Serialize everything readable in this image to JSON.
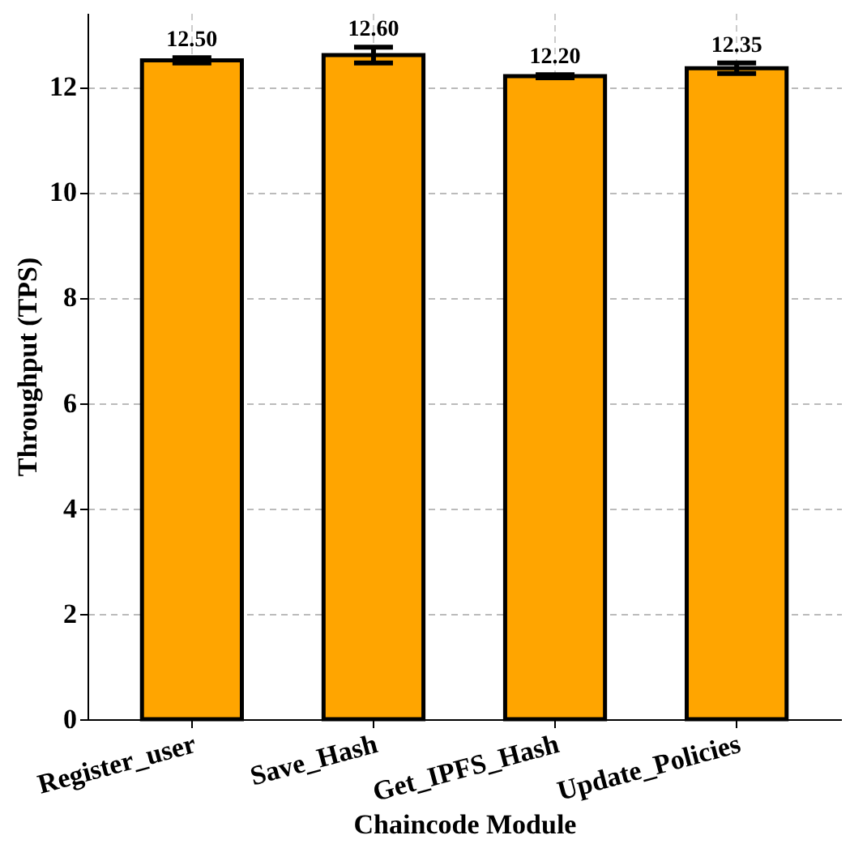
{
  "chart_data": {
    "type": "bar",
    "xlabel": "Chaincode Module",
    "ylabel": "Throughput (TPS)",
    "categories": [
      "Register_user",
      "Save_Hash",
      "Get_IPFS_Hash",
      "Update_Policies"
    ],
    "values": [
      12.5,
      12.6,
      12.2,
      12.35
    ],
    "errors": [
      0.05,
      0.15,
      0.03,
      0.1
    ],
    "value_labels": [
      "12.50",
      "12.60",
      "12.20",
      "12.35"
    ],
    "color": "#ffa500",
    "ylim": [
      0,
      13.4
    ],
    "yticks": [
      0,
      2,
      4,
      6,
      8,
      10,
      12
    ],
    "grid": true
  }
}
